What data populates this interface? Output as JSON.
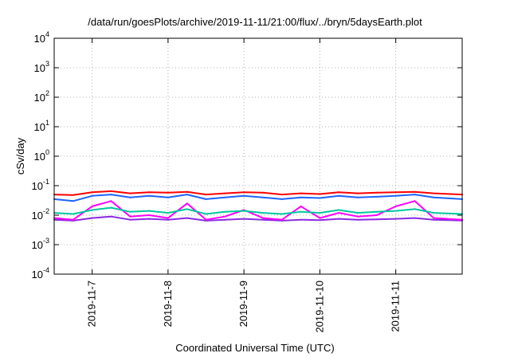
{
  "chart_data": {
    "type": "line",
    "title": "/data/run/goesPlots/archive/2019-11-11/21:00/flux/../bryn/5daysEarth.plot",
    "xlabel": "Coordinated Universal Time (UTC)",
    "ylabel": "cSv/day",
    "yscale": "log",
    "ylim": [
      0.0001,
      10000
    ],
    "xlim": [
      "2019-11-06 12:00",
      "2019-11-11 21:00"
    ],
    "grid": true,
    "x_ticks": [
      "2019-11-7",
      "2019-11-8",
      "2019-11-9",
      "2019-11-10",
      "2019-11-11"
    ],
    "y_ticks": [
      {
        "base": "10",
        "exp": "-4"
      },
      {
        "base": "10",
        "exp": "-3"
      },
      {
        "base": "10",
        "exp": "-2"
      },
      {
        "base": "10",
        "exp": "-1"
      },
      {
        "base": "10",
        "exp": "0"
      },
      {
        "base": "10",
        "exp": "1"
      },
      {
        "base": "10",
        "exp": "2"
      },
      {
        "base": "10",
        "exp": "3"
      },
      {
        "base": "10",
        "exp": "4"
      }
    ],
    "series_colors": [
      "#ff0000",
      "#1e64ff",
      "#00c8a0",
      "#ff00ff",
      "#8a2be2"
    ],
    "series": [
      {
        "color": "#ff0000",
        "x": [
          "2019-11-06 12:00",
          "2019-11-06 18:00",
          "2019-11-07 00:00",
          "2019-11-07 06:00",
          "2019-11-07 12:00",
          "2019-11-07 18:00",
          "2019-11-08 00:00",
          "2019-11-08 06:00",
          "2019-11-08 12:00",
          "2019-11-08 18:00",
          "2019-11-09 00:00",
          "2019-11-09 06:00",
          "2019-11-09 12:00",
          "2019-11-09 18:00",
          "2019-11-10 00:00",
          "2019-11-10 06:00",
          "2019-11-10 12:00",
          "2019-11-10 18:00",
          "2019-11-11 00:00",
          "2019-11-11 06:00",
          "2019-11-11 12:00",
          "2019-11-11 21:00"
        ],
        "values": [
          0.05,
          0.048,
          0.06,
          0.065,
          0.055,
          0.06,
          0.058,
          0.062,
          0.05,
          0.055,
          0.06,
          0.058,
          0.05,
          0.055,
          0.052,
          0.06,
          0.055,
          0.058,
          0.06,
          0.062,
          0.055,
          0.05
        ]
      },
      {
        "color": "#1e64ff",
        "x": [
          "2019-11-06 12:00",
          "2019-11-06 18:00",
          "2019-11-07 00:00",
          "2019-11-07 06:00",
          "2019-11-07 12:00",
          "2019-11-07 18:00",
          "2019-11-08 00:00",
          "2019-11-08 06:00",
          "2019-11-08 12:00",
          "2019-11-08 18:00",
          "2019-11-09 00:00",
          "2019-11-09 06:00",
          "2019-11-09 12:00",
          "2019-11-09 18:00",
          "2019-11-10 00:00",
          "2019-11-10 06:00",
          "2019-11-10 12:00",
          "2019-11-10 18:00",
          "2019-11-11 00:00",
          "2019-11-11 06:00",
          "2019-11-11 12:00",
          "2019-11-11 21:00"
        ],
        "values": [
          0.035,
          0.03,
          0.045,
          0.05,
          0.04,
          0.045,
          0.04,
          0.05,
          0.035,
          0.04,
          0.045,
          0.04,
          0.035,
          0.04,
          0.038,
          0.045,
          0.04,
          0.042,
          0.045,
          0.05,
          0.04,
          0.035
        ]
      },
      {
        "color": "#00c8a0",
        "x": [
          "2019-11-06 12:00",
          "2019-11-06 18:00",
          "2019-11-07 00:00",
          "2019-11-07 06:00",
          "2019-11-07 12:00",
          "2019-11-07 18:00",
          "2019-11-08 00:00",
          "2019-11-08 06:00",
          "2019-11-08 12:00",
          "2019-11-08 18:00",
          "2019-11-09 00:00",
          "2019-11-09 06:00",
          "2019-11-09 12:00",
          "2019-11-09 18:00",
          "2019-11-10 00:00",
          "2019-11-10 06:00",
          "2019-11-10 12:00",
          "2019-11-10 18:00",
          "2019-11-11 00:00",
          "2019-11-11 06:00",
          "2019-11-11 12:00",
          "2019-11-11 21:00"
        ],
        "values": [
          0.012,
          0.011,
          0.015,
          0.018,
          0.013,
          0.014,
          0.012,
          0.016,
          0.011,
          0.013,
          0.014,
          0.012,
          0.011,
          0.013,
          0.012,
          0.015,
          0.012,
          0.013,
          0.014,
          0.016,
          0.012,
          0.011
        ]
      },
      {
        "color": "#ff00ff",
        "x": [
          "2019-11-06 12:00",
          "2019-11-06 18:00",
          "2019-11-07 00:00",
          "2019-11-07 06:00",
          "2019-11-07 12:00",
          "2019-11-07 18:00",
          "2019-11-08 00:00",
          "2019-11-08 06:00",
          "2019-11-08 12:00",
          "2019-11-08 18:00",
          "2019-11-09 00:00",
          "2019-11-09 06:00",
          "2019-11-09 12:00",
          "2019-11-09 18:00",
          "2019-11-10 00:00",
          "2019-11-10 06:00",
          "2019-11-10 12:00",
          "2019-11-10 18:00",
          "2019-11-11 00:00",
          "2019-11-11 06:00",
          "2019-11-11 12:00",
          "2019-11-11 21:00"
        ],
        "values": [
          0.008,
          0.007,
          0.02,
          0.03,
          0.009,
          0.01,
          0.008,
          0.025,
          0.007,
          0.009,
          0.015,
          0.008,
          0.007,
          0.02,
          0.008,
          0.012,
          0.009,
          0.01,
          0.02,
          0.03,
          0.008,
          0.007
        ]
      },
      {
        "color": "#8a2be2",
        "x": [
          "2019-11-06 12:00",
          "2019-11-06 18:00",
          "2019-11-07 00:00",
          "2019-11-07 06:00",
          "2019-11-07 12:00",
          "2019-11-07 18:00",
          "2019-11-08 00:00",
          "2019-11-08 06:00",
          "2019-11-08 12:00",
          "2019-11-08 18:00",
          "2019-11-09 00:00",
          "2019-11-09 06:00",
          "2019-11-09 12:00",
          "2019-11-09 18:00",
          "2019-11-10 00:00",
          "2019-11-10 06:00",
          "2019-11-10 12:00",
          "2019-11-10 18:00",
          "2019-11-11 00:00",
          "2019-11-11 06:00",
          "2019-11-11 12:00",
          "2019-11-11 21:00"
        ],
        "values": [
          0.007,
          0.0065,
          0.008,
          0.009,
          0.007,
          0.0075,
          0.007,
          0.008,
          0.0065,
          0.007,
          0.0075,
          0.007,
          0.0065,
          0.007,
          0.0068,
          0.0075,
          0.007,
          0.0072,
          0.0075,
          0.008,
          0.007,
          0.0066
        ]
      }
    ]
  }
}
